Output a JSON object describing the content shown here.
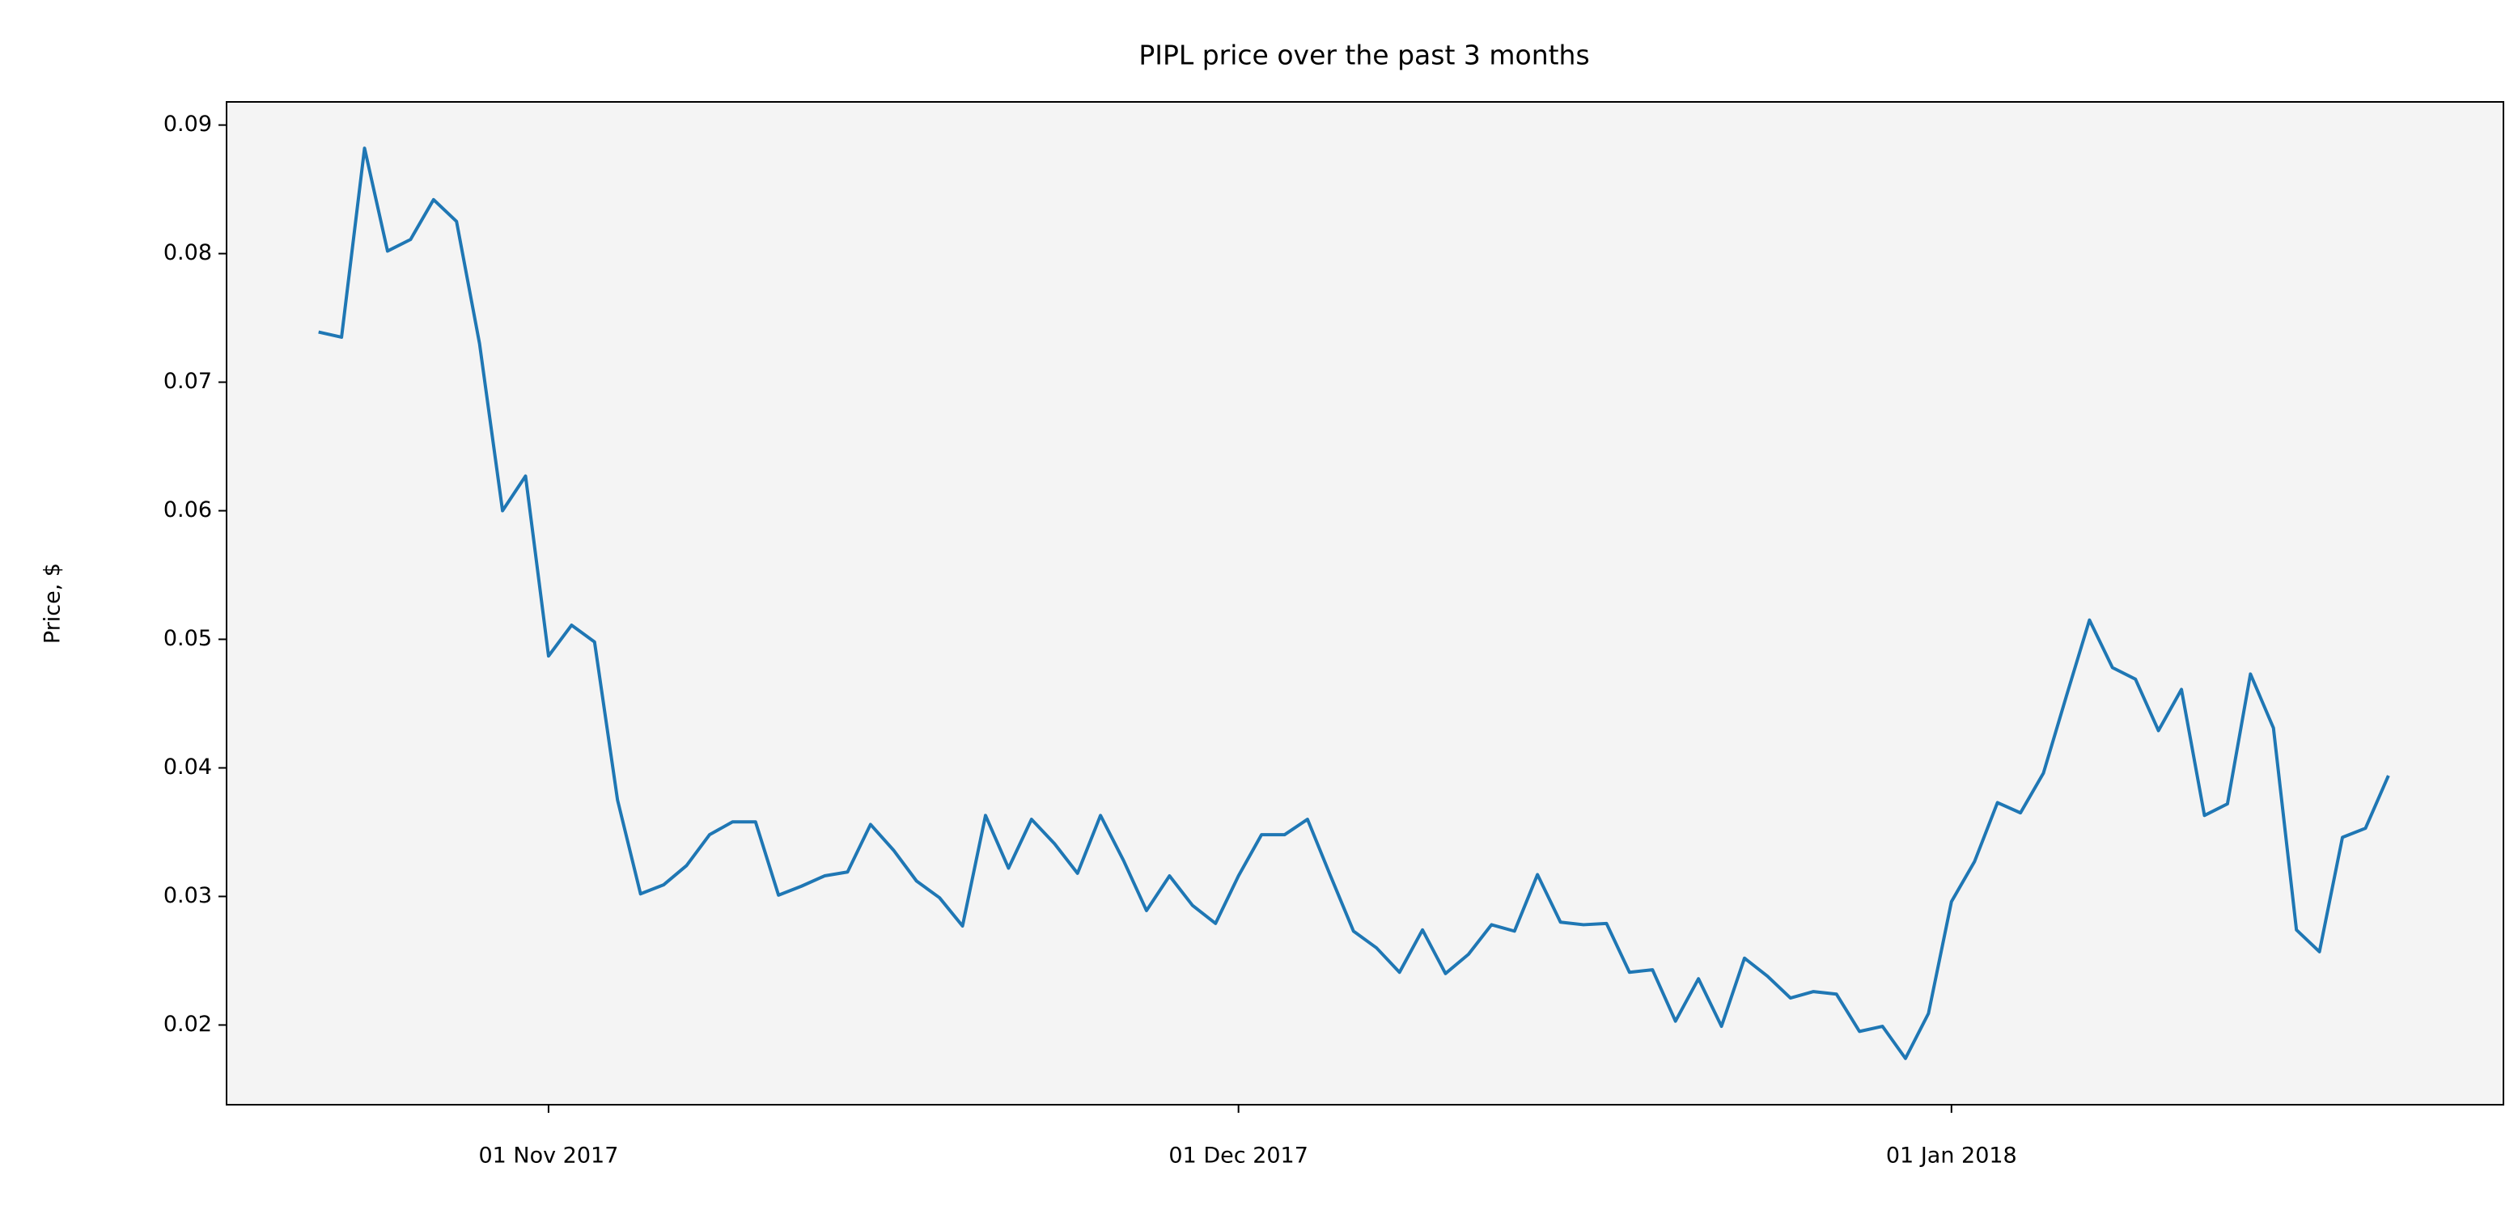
{
  "chart_data": {
    "type": "line",
    "title": "PIPL price over the past 3 months",
    "ylabel": "Price, $",
    "color": "#1f77b4",
    "x": [
      "2017-10-22",
      "2017-10-23",
      "2017-10-24",
      "2017-10-25",
      "2017-10-26",
      "2017-10-27",
      "2017-10-28",
      "2017-10-29",
      "2017-10-30",
      "2017-10-31",
      "2017-11-01",
      "2017-11-02",
      "2017-11-03",
      "2017-11-04",
      "2017-11-05",
      "2017-11-06",
      "2017-11-07",
      "2017-11-08",
      "2017-11-09",
      "2017-11-10",
      "2017-11-11",
      "2017-11-12",
      "2017-11-13",
      "2017-11-14",
      "2017-11-15",
      "2017-11-16",
      "2017-11-17",
      "2017-11-18",
      "2017-11-19",
      "2017-11-20",
      "2017-11-21",
      "2017-11-22",
      "2017-11-23",
      "2017-11-24",
      "2017-11-25",
      "2017-11-26",
      "2017-11-27",
      "2017-11-28",
      "2017-11-29",
      "2017-11-30",
      "2017-12-01",
      "2017-12-02",
      "2017-12-03",
      "2017-12-04",
      "2017-12-05",
      "2017-12-06",
      "2017-12-07",
      "2017-12-08",
      "2017-12-09",
      "2017-12-10",
      "2017-12-11",
      "2017-12-12",
      "2017-12-13",
      "2017-12-14",
      "2017-12-15",
      "2017-12-16",
      "2017-12-17",
      "2017-12-18",
      "2017-12-19",
      "2017-12-20",
      "2017-12-21",
      "2017-12-22",
      "2017-12-23",
      "2017-12-24",
      "2017-12-25",
      "2017-12-26",
      "2017-12-27",
      "2017-12-28",
      "2017-12-29",
      "2017-12-30",
      "2017-12-31",
      "2018-01-01",
      "2018-01-02",
      "2018-01-03",
      "2018-01-04",
      "2018-01-05",
      "2018-01-06",
      "2018-01-07",
      "2018-01-08",
      "2018-01-09",
      "2018-01-10",
      "2018-01-11",
      "2018-01-12",
      "2018-01-13",
      "2018-01-14",
      "2018-01-15",
      "2018-01-16",
      "2018-01-17",
      "2018-01-18",
      "2018-01-19",
      "2018-01-20"
    ],
    "values": [
      0.0739,
      0.0735,
      0.0882,
      0.0802,
      0.0811,
      0.0842,
      0.0825,
      0.073,
      0.06,
      0.0627,
      0.0487,
      0.0511,
      0.0498,
      0.0375,
      0.0302,
      0.0309,
      0.0324,
      0.0348,
      0.0358,
      0.0358,
      0.0301,
      0.0308,
      0.0316,
      0.0319,
      0.0356,
      0.0336,
      0.0312,
      0.0299,
      0.0277,
      0.0363,
      0.0322,
      0.036,
      0.0341,
      0.0318,
      0.0363,
      0.0328,
      0.0289,
      0.0316,
      0.0293,
      0.0279,
      0.0316,
      0.0348,
      0.0348,
      0.036,
      0.0316,
      0.0273,
      0.026,
      0.0241,
      0.0274,
      0.024,
      0.0255,
      0.0278,
      0.0273,
      0.0317,
      0.028,
      0.0278,
      0.0279,
      0.0241,
      0.0243,
      0.0203,
      0.0236,
      0.0199,
      0.0252,
      0.0238,
      0.0221,
      0.0226,
      0.0224,
      0.0195,
      0.0199,
      0.0174,
      0.0209,
      0.0296,
      0.0327,
      0.0373,
      0.0365,
      0.0396,
      0.0456,
      0.0515,
      0.0478,
      0.0469,
      0.0429,
      0.0461,
      0.0363,
      0.0372,
      0.0473,
      0.0431,
      0.0274,
      0.0257,
      0.0346,
      0.0353,
      0.0394
    ],
    "xlim": [
      "2017-10-18",
      "2018-01-25"
    ],
    "xticks": [
      {
        "value": "2017-11-01",
        "label": "01 Nov 2017"
      },
      {
        "value": "2017-12-01",
        "label": "01 Dec 2017"
      },
      {
        "value": "2018-01-01",
        "label": "01 Jan 2018"
      }
    ],
    "ylim": [
      0.0138,
      0.0918
    ],
    "yticks": [
      0.02,
      0.03,
      0.04,
      0.05,
      0.06,
      0.07,
      0.08,
      0.09
    ]
  }
}
